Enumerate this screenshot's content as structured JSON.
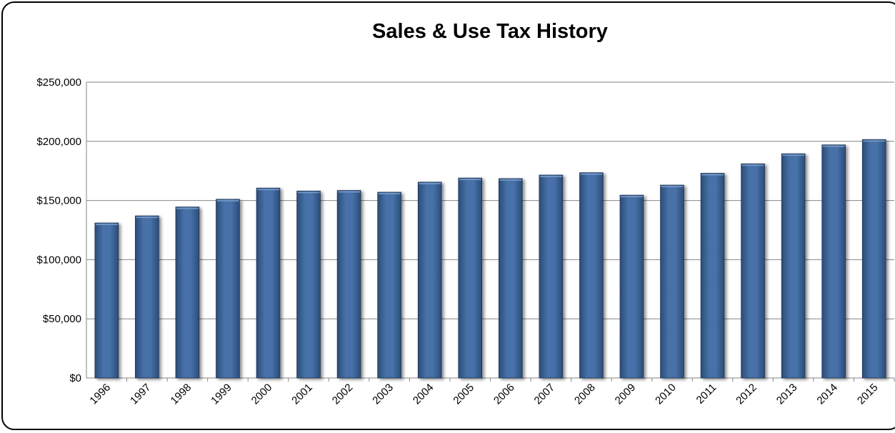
{
  "chart_data": {
    "type": "bar",
    "title": "Sales & Use Tax History",
    "xlabel": "",
    "ylabel": "",
    "categories": [
      "1996",
      "1997",
      "1998",
      "1999",
      "2000",
      "2001",
      "2002",
      "2003",
      "2004",
      "2005",
      "2006",
      "2007",
      "2008",
      "2009",
      "2010",
      "2011",
      "2012",
      "2013",
      "2014",
      "2015"
    ],
    "values": [
      131000,
      137000,
      144500,
      151000,
      160500,
      158000,
      158500,
      157000,
      165500,
      169000,
      168500,
      171500,
      173500,
      154500,
      163000,
      173000,
      181000,
      189500,
      197000,
      201500
    ],
    "ylim": [
      0,
      250000
    ],
    "yticks": [
      0,
      50000,
      100000,
      150000,
      200000,
      250000
    ],
    "ytick_labels": [
      "$0",
      "$50,000",
      "$100,000",
      "$150,000",
      "$200,000",
      "$250,000"
    ],
    "grid": true,
    "legend": "none",
    "bar_color": "#3e6497"
  }
}
